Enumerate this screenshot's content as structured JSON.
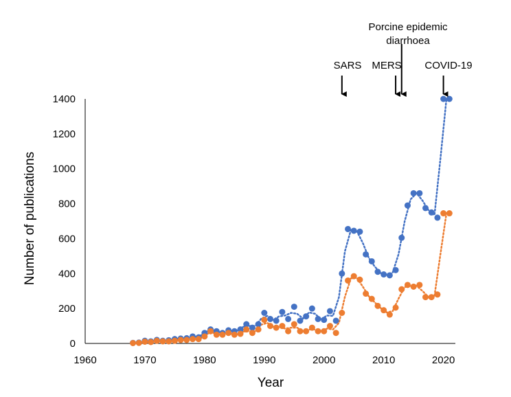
{
  "chart_data": {
    "type": "scatter",
    "title": "",
    "xlabel": "Year",
    "ylabel": "Number of publications",
    "xlim": [
      1960,
      2022
    ],
    "ylim": [
      0,
      1400
    ],
    "x_ticks": [
      "1960",
      "1970",
      "1980",
      "1990",
      "2000",
      "2010",
      "2020"
    ],
    "y_ticks": [
      "0",
      "200",
      "400",
      "600",
      "800",
      "1000",
      "1200",
      "1400"
    ],
    "grid": false,
    "legend": "none",
    "trendline": "dotted moving average",
    "series": [
      {
        "color": "#4472C4",
        "x": [
          1968,
          1969,
          1970,
          1971,
          1972,
          1973,
          1974,
          1975,
          1976,
          1977,
          1978,
          1979,
          1980,
          1981,
          1982,
          1983,
          1984,
          1985,
          1986,
          1987,
          1988,
          1989,
          1990,
          1991,
          1992,
          1993,
          1994,
          1995,
          1996,
          1997,
          1998,
          1999,
          2000,
          2001,
          2002,
          2003,
          2004,
          2005,
          2006,
          2007,
          2008,
          2009,
          2010,
          2011,
          2012,
          2013,
          2014,
          2015,
          2016,
          2017,
          2018,
          2019,
          2020,
          2021
        ],
        "values": [
          3,
          5,
          15,
          12,
          20,
          15,
          18,
          25,
          28,
          30,
          40,
          35,
          60,
          80,
          70,
          60,
          75,
          70,
          80,
          110,
          90,
          110,
          175,
          140,
          130,
          180,
          140,
          210,
          130,
          155,
          200,
          140,
          135,
          185,
          130,
          400,
          655,
          645,
          640,
          510,
          470,
          410,
          395,
          390,
          420,
          605,
          790,
          860,
          860,
          775,
          750,
          720,
          1400,
          1400
        ]
      },
      {
        "color": "#ED7D31",
        "x": [
          1968,
          1969,
          1970,
          1971,
          1972,
          1973,
          1974,
          1975,
          1976,
          1977,
          1978,
          1979,
          1980,
          1981,
          1982,
          1983,
          1984,
          1985,
          1986,
          1987,
          1988,
          1989,
          1990,
          1991,
          1992,
          1993,
          1994,
          1995,
          1996,
          1997,
          1998,
          1999,
          2000,
          2001,
          2002,
          2003,
          2004,
          2005,
          2006,
          2007,
          2008,
          2009,
          2010,
          2011,
          2012,
          2013,
          2014,
          2015,
          2016,
          2017,
          2018,
          2019,
          2020,
          2021
        ],
        "values": [
          2,
          3,
          10,
          8,
          15,
          12,
          12,
          15,
          20,
          20,
          25,
          25,
          40,
          70,
          50,
          50,
          60,
          50,
          55,
          80,
          60,
          80,
          135,
          100,
          90,
          100,
          70,
          110,
          70,
          70,
          90,
          70,
          70,
          100,
          60,
          175,
          360,
          385,
          365,
          285,
          255,
          215,
          190,
          165,
          205,
          310,
          335,
          325,
          335,
          265,
          265,
          280,
          745,
          745
        ]
      }
    ],
    "annotations": [
      {
        "label": "SARS",
        "x": 2003
      },
      {
        "label": "MERS",
        "x": 2012
      },
      {
        "label": "Porcine epidemic diarrhoea",
        "lines": [
          "Porcine epidemic",
          "diarrhoea"
        ],
        "x": 2013
      },
      {
        "label": "COVID-19",
        "x": 2020
      }
    ]
  }
}
